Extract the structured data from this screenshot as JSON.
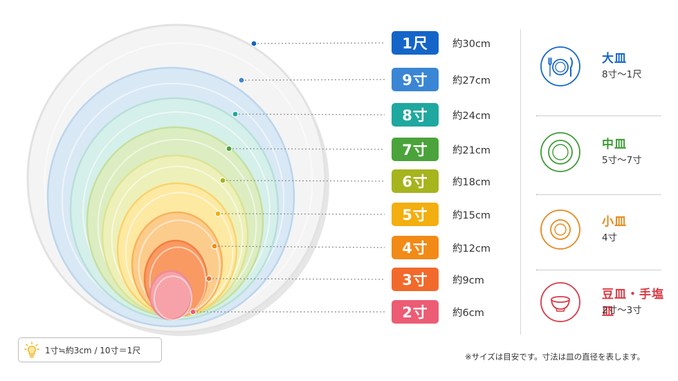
{
  "sizes": [
    {
      "label": "1尺",
      "cm": "約30cm",
      "color": "#1565c9"
    },
    {
      "label": "9寸",
      "cm": "約27cm",
      "color": "#3a86d4"
    },
    {
      "label": "8寸",
      "cm": "約24cm",
      "color": "#1fa89f"
    },
    {
      "label": "7寸",
      "cm": "約21cm",
      "color": "#4ba33b"
    },
    {
      "label": "6寸",
      "cm": "約18cm",
      "color": "#a6b41e"
    },
    {
      "label": "5寸",
      "cm": "約15cm",
      "color": "#f3ae0f"
    },
    {
      "label": "4寸",
      "cm": "約12cm",
      "color": "#f28a17"
    },
    {
      "label": "3寸",
      "cm": "約9cm",
      "color": "#f16a2c"
    },
    {
      "label": "2寸",
      "cm": "約6cm",
      "color": "#ec5c74"
    }
  ],
  "plates": [
    {
      "fill": "#f4f4f4",
      "rim": "#e2e2e2",
      "dot": "#1565c9"
    },
    {
      "fill": "#d9e8f5",
      "rim": "#bcd5ec",
      "dot": "#3a86d4"
    },
    {
      "fill": "#d5efea",
      "rim": "#b6e0d9",
      "dot": "#1fa89f"
    },
    {
      "fill": "#dcedc2",
      "rim": "#c4e0a0",
      "dot": "#4ba33b"
    },
    {
      "fill": "#edf0b8",
      "rim": "#dde394",
      "dot": "#a6b41e"
    },
    {
      "fill": "#fde9a2",
      "rim": "#f8d370",
      "dot": "#f3ae0f"
    },
    {
      "fill": "#fccc8c",
      "rim": "#f9b25a",
      "dot": "#f28a17"
    },
    {
      "fill": "#f99a63",
      "rim": "#f27f40",
      "dot": "#f16a2c"
    },
    {
      "fill": "#f6a2a8",
      "rim": "#ee8a93",
      "dot": "#ec5c74"
    }
  ],
  "categories": [
    {
      "name": "大皿",
      "range": "8寸〜1尺",
      "color": "#1565c9",
      "icon": "fork-plate-knife-icon"
    },
    {
      "name": "中皿",
      "range": "5寸〜7寸",
      "color": "#3d9a35",
      "icon": "plate-icon"
    },
    {
      "name": "小皿",
      "range": "4寸",
      "color": "#e8891c",
      "icon": "small-plate-icon"
    },
    {
      "name": "豆皿・手塩皿",
      "range": "2寸〜3寸",
      "color": "#d93a45",
      "icon": "bowl-icon"
    }
  ],
  "legend": {
    "text": "1寸≒約3cm / 10寸＝1尺",
    "icon": "lightbulb-icon"
  },
  "note": "※サイズは目安です。寸法は皿の直径を表します。"
}
